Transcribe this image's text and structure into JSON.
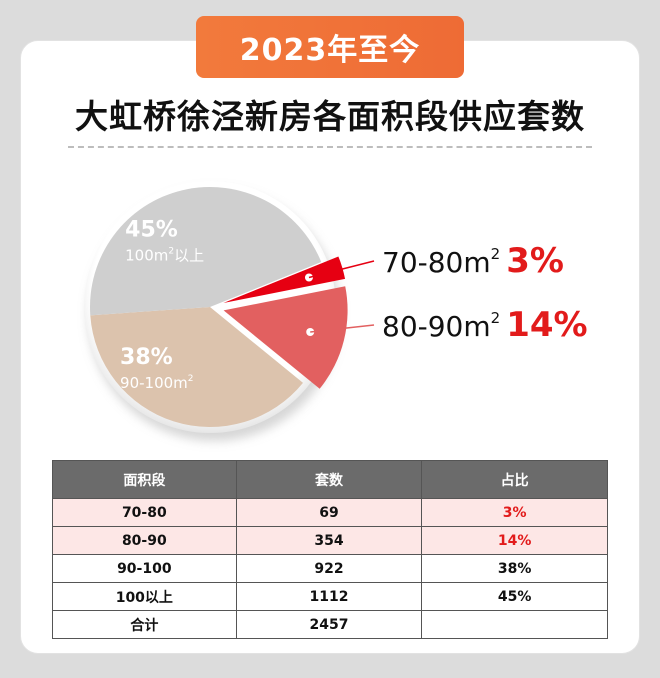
{
  "period_tab": "2023年至今",
  "title": "大虹桥徐泾新房各面积段供应套数",
  "colors": {
    "card_bg": "#ffffff",
    "tab_orange": "#f07538",
    "slice_gray": "#cfcfcf",
    "slice_beige": "#dcc3ad",
    "slice_pink": "#e26060",
    "slice_red": "#e60012",
    "emphasis_red": "#e21b1b"
  },
  "chart_data": {
    "type": "pie",
    "title": "大虹桥徐泾新房各面积段供应套数",
    "slices": [
      {
        "pct": 3,
        "pct_label": "3%",
        "label": "70-80m²",
        "label_base": "70-80m",
        "label_sup": "2",
        "color": "#e60012",
        "exploded": true
      },
      {
        "pct": 14,
        "pct_label": "14%",
        "label": "80-90m²",
        "label_base": "80-90m",
        "label_sup": "2",
        "color": "#e26060",
        "exploded": true
      },
      {
        "pct": 38,
        "pct_label": "38%",
        "label": "90-100m²",
        "label_base": "90-100m",
        "label_sup": "2",
        "color": "#dcc3ad",
        "exploded": false
      },
      {
        "pct": 45,
        "pct_label": "45%",
        "label": "100m²以上",
        "label_base": "100m",
        "label_sup": "2",
        "label_suffix": "以上",
        "color": "#cfcfcf",
        "exploded": false
      }
    ]
  },
  "table": {
    "headers": [
      "面积段",
      "套数",
      "占比"
    ],
    "rows": [
      {
        "range": "70-80",
        "count": "69",
        "share": "3%",
        "highlight": true
      },
      {
        "range": "80-90",
        "count": "354",
        "share": "14%",
        "highlight": true
      },
      {
        "range": "90-100",
        "count": "922",
        "share": "38%",
        "highlight": false
      },
      {
        "range": "100以上",
        "count": "1112",
        "share": "45%",
        "highlight": false
      },
      {
        "range": "合计",
        "count": "2457",
        "share": "",
        "highlight": false
      }
    ]
  }
}
